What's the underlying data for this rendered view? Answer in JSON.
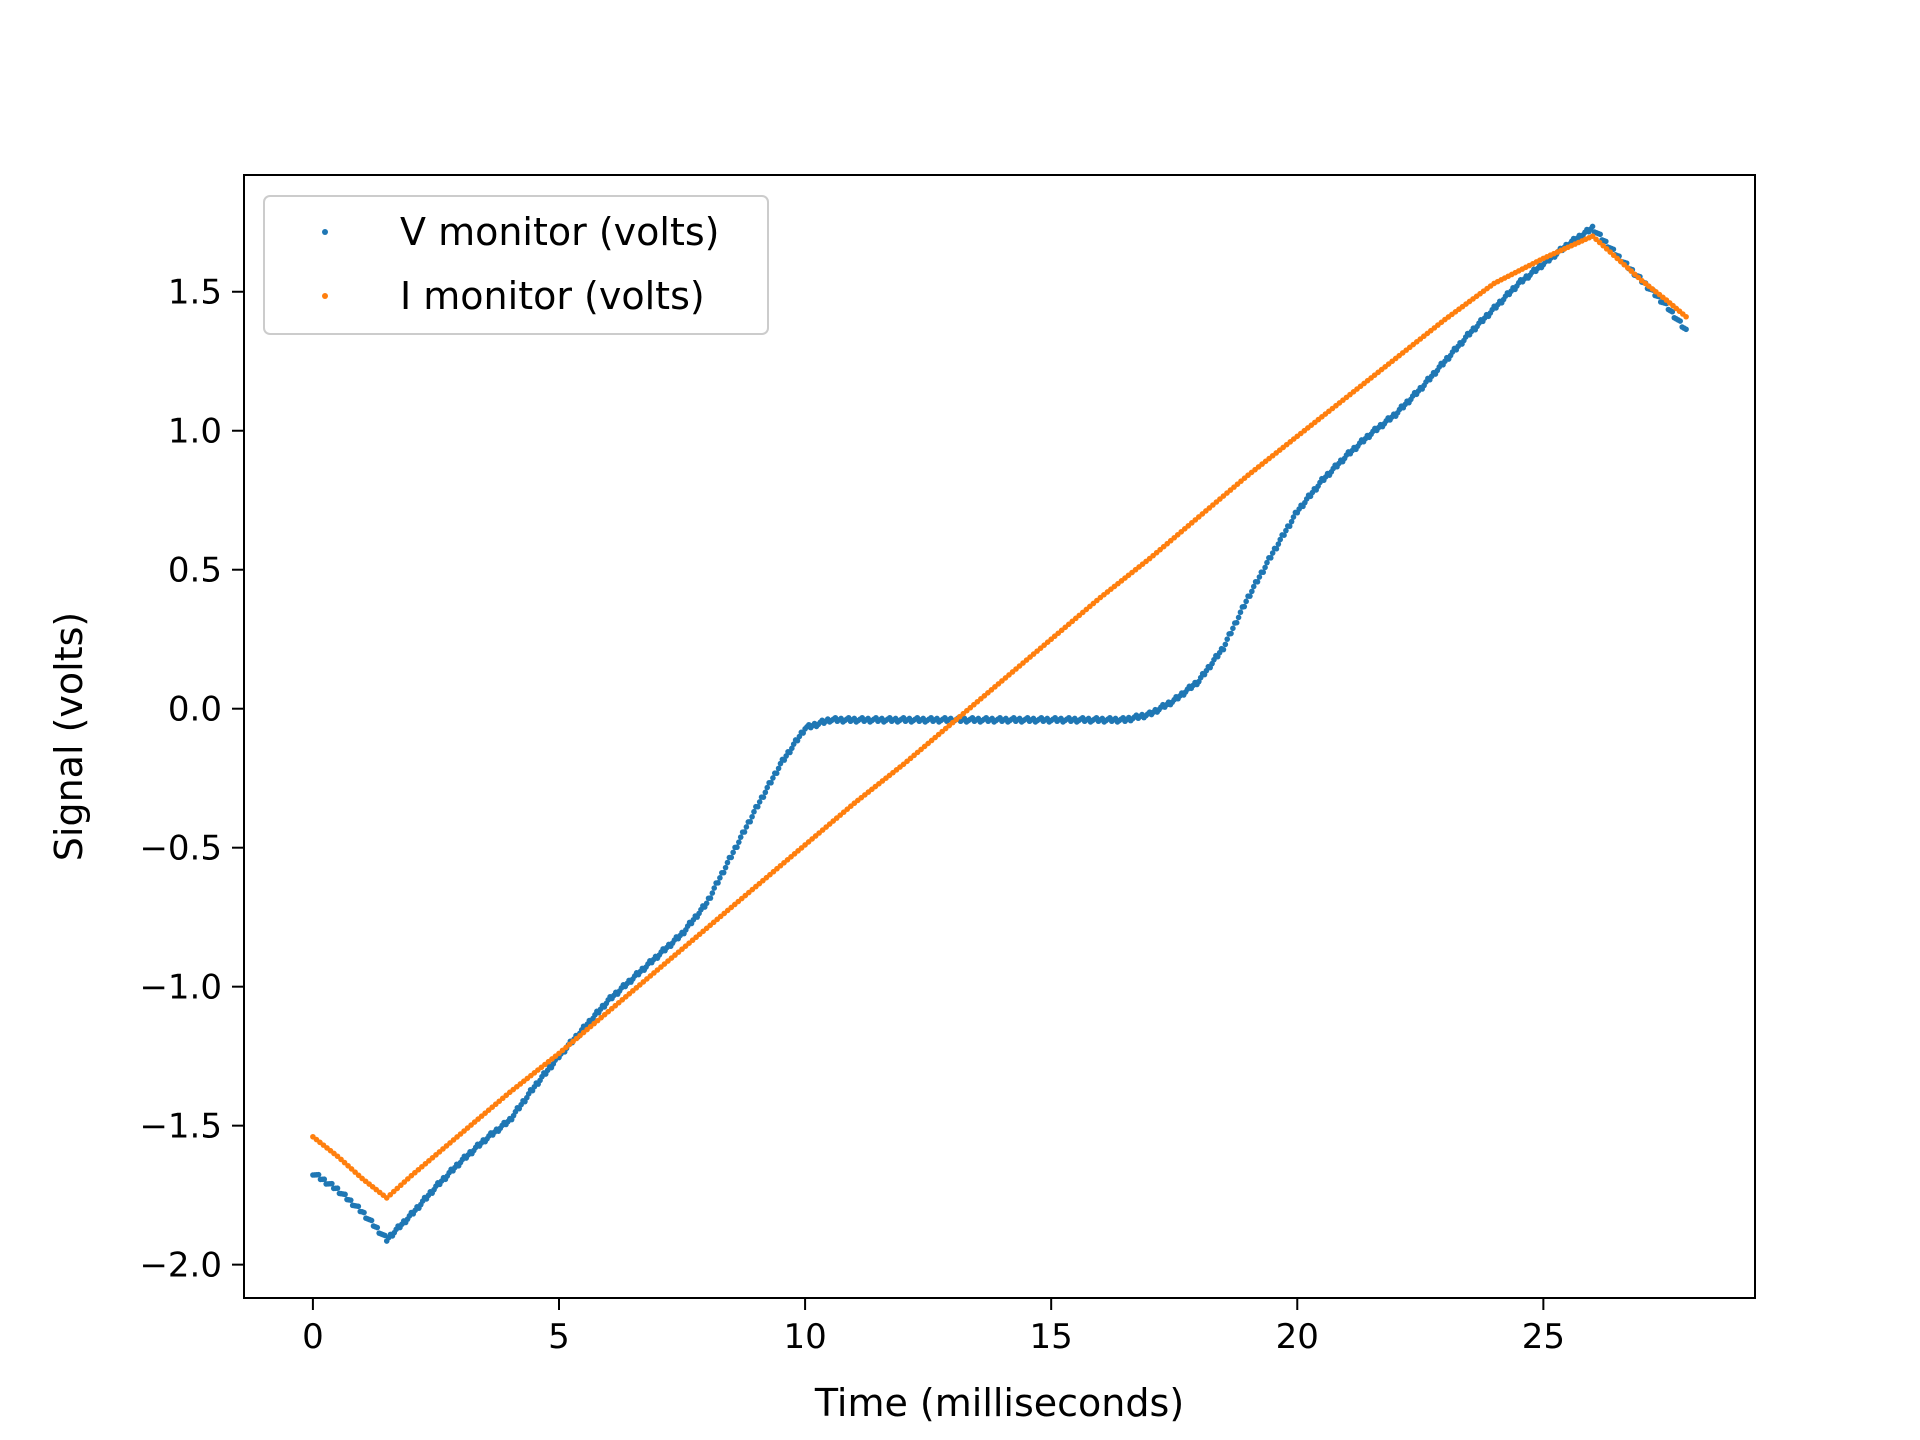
{
  "chart_data": {
    "type": "scatter",
    "title": "",
    "xlabel": "Time (milliseconds)",
    "ylabel": "Signal (volts)",
    "xlim": [
      -1.4,
      29.3
    ],
    "ylim": [
      -2.12,
      1.92
    ],
    "xticks": [
      0,
      5,
      10,
      15,
      20,
      25
    ],
    "yticks": [
      -2.0,
      -1.5,
      -1.0,
      -0.5,
      0.0,
      0.5,
      1.0,
      1.5
    ],
    "xtick_labels": [
      "0",
      "5",
      "10",
      "15",
      "20",
      "25"
    ],
    "ytick_labels": [
      "−2.0",
      "−1.5",
      "−1.0",
      "−0.5",
      "0.0",
      "0.5",
      "1.0",
      "1.5"
    ],
    "grid": false,
    "legend_position": "top-left",
    "series": [
      {
        "name": "V monitor (volts)",
        "color": "#1f77b4",
        "marker": "point",
        "points": [
          [
            0.0,
            -1.67
          ],
          [
            0.5,
            -1.73
          ],
          [
            1.0,
            -1.81
          ],
          [
            1.5,
            -1.91
          ],
          [
            2.0,
            -1.82
          ],
          [
            2.5,
            -1.72
          ],
          [
            3.0,
            -1.63
          ],
          [
            3.5,
            -1.55
          ],
          [
            4.0,
            -1.48
          ],
          [
            4.5,
            -1.36
          ],
          [
            5.0,
            -1.25
          ],
          [
            5.5,
            -1.15
          ],
          [
            6.0,
            -1.05
          ],
          [
            6.5,
            -0.97
          ],
          [
            7.0,
            -0.89
          ],
          [
            7.5,
            -0.81
          ],
          [
            8.0,
            -0.7
          ],
          [
            8.5,
            -0.53
          ],
          [
            9.0,
            -0.36
          ],
          [
            9.5,
            -0.2
          ],
          [
            10.0,
            -0.07
          ],
          [
            10.5,
            -0.04
          ],
          [
            11.0,
            -0.04
          ],
          [
            12.0,
            -0.04
          ],
          [
            13.0,
            -0.04
          ],
          [
            14.0,
            -0.04
          ],
          [
            15.0,
            -0.04
          ],
          [
            16.0,
            -0.04
          ],
          [
            16.5,
            -0.04
          ],
          [
            17.0,
            -0.02
          ],
          [
            17.5,
            0.03
          ],
          [
            18.0,
            0.1
          ],
          [
            18.5,
            0.22
          ],
          [
            19.0,
            0.4
          ],
          [
            19.5,
            0.56
          ],
          [
            20.0,
            0.71
          ],
          [
            20.5,
            0.82
          ],
          [
            21.0,
            0.91
          ],
          [
            21.5,
            0.99
          ],
          [
            22.0,
            1.06
          ],
          [
            22.5,
            1.15
          ],
          [
            23.0,
            1.25
          ],
          [
            23.5,
            1.35
          ],
          [
            24.0,
            1.44
          ],
          [
            24.5,
            1.53
          ],
          [
            25.0,
            1.6
          ],
          [
            25.5,
            1.67
          ],
          [
            26.0,
            1.73
          ],
          [
            26.5,
            1.63
          ],
          [
            27.0,
            1.54
          ],
          [
            27.5,
            1.45
          ],
          [
            27.9,
            1.36
          ]
        ]
      },
      {
        "name": "I monitor (volts)",
        "color": "#ff7f0e",
        "marker": "point",
        "points": [
          [
            0.0,
            -1.54
          ],
          [
            0.5,
            -1.61
          ],
          [
            1.0,
            -1.69
          ],
          [
            1.5,
            -1.76
          ],
          [
            2.0,
            -1.68
          ],
          [
            3.0,
            -1.53
          ],
          [
            4.0,
            -1.38
          ],
          [
            5.0,
            -1.24
          ],
          [
            6.0,
            -1.09
          ],
          [
            7.0,
            -0.94
          ],
          [
            8.0,
            -0.79
          ],
          [
            9.0,
            -0.64
          ],
          [
            10.0,
            -0.49
          ],
          [
            11.0,
            -0.34
          ],
          [
            12.0,
            -0.2
          ],
          [
            13.0,
            -0.05
          ],
          [
            14.0,
            0.1
          ],
          [
            15.0,
            0.25
          ],
          [
            16.0,
            0.4
          ],
          [
            17.0,
            0.54
          ],
          [
            18.0,
            0.69
          ],
          [
            19.0,
            0.84
          ],
          [
            20.0,
            0.98
          ],
          [
            21.0,
            1.12
          ],
          [
            22.0,
            1.26
          ],
          [
            23.0,
            1.4
          ],
          [
            24.0,
            1.53
          ],
          [
            25.0,
            1.62
          ],
          [
            26.0,
            1.7
          ],
          [
            26.5,
            1.62
          ],
          [
            27.0,
            1.54
          ],
          [
            27.5,
            1.47
          ],
          [
            27.9,
            1.41
          ]
        ]
      }
    ]
  }
}
